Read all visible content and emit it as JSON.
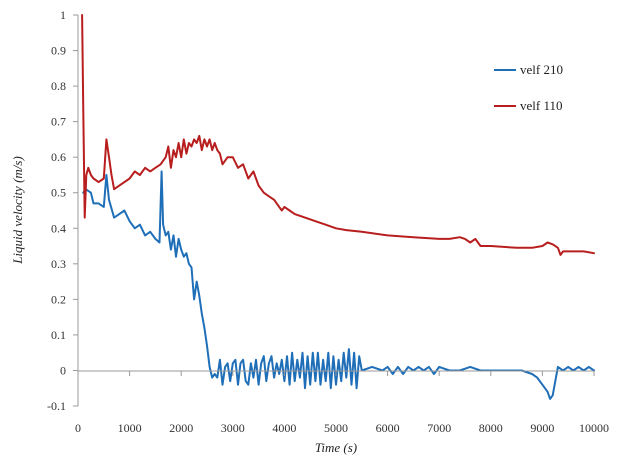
{
  "chart_data": {
    "type": "line",
    "title": "",
    "xlabel": "Time (s)",
    "ylabel": "Liquid velocity (m/s)",
    "xlim": [
      0,
      10000
    ],
    "ylim": [
      -0.1,
      1
    ],
    "x_ticks": [
      0,
      1000,
      2000,
      3000,
      4000,
      5000,
      6000,
      7000,
      8000,
      9000,
      10000
    ],
    "x_tick_labels": [
      "0",
      "1000",
      "2000",
      "3000",
      "4000",
      "5000",
      "6000",
      "7000",
      "8000",
      "9000",
      "10000"
    ],
    "y_ticks": [
      -0.1,
      0,
      0.1,
      0.2,
      0.3,
      0.4,
      0.5,
      0.6,
      0.7,
      0.8,
      0.9,
      1
    ],
    "y_tick_labels": [
      "-0.1",
      "0",
      "0.1",
      "0.2",
      "0.3",
      "0.4",
      "0.5",
      "0.6",
      "0.7",
      "0.8",
      "0.9",
      "1"
    ],
    "grid": false,
    "legend_position": "right",
    "series": [
      {
        "name": "velf 210",
        "color": "#1f6fb8",
        "x": [
          100,
          150,
          250,
          300,
          400,
          500,
          550,
          600,
          700,
          800,
          900,
          1000,
          1100,
          1200,
          1300,
          1400,
          1500,
          1580,
          1620,
          1650,
          1700,
          1750,
          1800,
          1850,
          1900,
          1950,
          2000,
          2050,
          2100,
          2150,
          2200,
          2250,
          2300,
          2350,
          2400,
          2450,
          2500,
          2550,
          2600,
          2650,
          2700,
          2750,
          2800,
          2850,
          2900,
          2950,
          3000,
          3050,
          3100,
          3150,
          3200,
          3250,
          3300,
          3350,
          3400,
          3450,
          3500,
          3550,
          3600,
          3650,
          3700,
          3750,
          3800,
          3850,
          3900,
          3950,
          4000,
          4050,
          4100,
          4150,
          4200,
          4250,
          4300,
          4350,
          4400,
          4450,
          4500,
          4550,
          4600,
          4650,
          4700,
          4750,
          4800,
          4850,
          4900,
          4950,
          5000,
          5050,
          5100,
          5150,
          5200,
          5250,
          5300,
          5350,
          5400,
          5450,
          5500,
          5700,
          5900,
          6000,
          6100,
          6200,
          6300,
          6400,
          6500,
          6600,
          6700,
          6800,
          6900,
          7000,
          7200,
          7400,
          7600,
          7800,
          8000,
          8200,
          8400,
          8600,
          8800,
          8900,
          9000,
          9100,
          9150,
          9200,
          9250,
          9300,
          9400,
          9500,
          9600,
          9700,
          9800,
          9900,
          10000
        ],
        "values": [
          0.5,
          0.51,
          0.5,
          0.47,
          0.47,
          0.46,
          0.55,
          0.48,
          0.43,
          0.44,
          0.45,
          0.42,
          0.4,
          0.41,
          0.38,
          0.39,
          0.37,
          0.36,
          0.56,
          0.41,
          0.38,
          0.39,
          0.34,
          0.38,
          0.32,
          0.37,
          0.34,
          0.32,
          0.33,
          0.3,
          0.29,
          0.2,
          0.25,
          0.21,
          0.16,
          0.12,
          0.07,
          0.01,
          -0.02,
          -0.01,
          -0.02,
          0.03,
          -0.04,
          0.01,
          0.02,
          -0.03,
          0.02,
          0.03,
          -0.04,
          0.02,
          0.03,
          -0.03,
          -0.04,
          0.02,
          -0.02,
          0.03,
          -0.04,
          0.02,
          0.04,
          -0.03,
          0.02,
          0.04,
          -0.02,
          0.02,
          -0.01,
          0.03,
          -0.03,
          0.04,
          -0.04,
          0.05,
          -0.03,
          0.03,
          -0.02,
          0.05,
          -0.05,
          0.04,
          -0.04,
          0.05,
          -0.03,
          0.05,
          -0.04,
          0.03,
          -0.03,
          0.05,
          -0.05,
          0.04,
          -0.04,
          0.03,
          -0.03,
          0.05,
          -0.02,
          0.06,
          -0.04,
          0.05,
          -0.05,
          0.04,
          0.0,
          0.01,
          0.0,
          0.01,
          -0.01,
          0.01,
          -0.01,
          0.01,
          0.0,
          0.01,
          0.0,
          0.01,
          -0.01,
          0.01,
          0.0,
          0.0,
          0.01,
          0.0,
          0.0,
          0.0,
          0.0,
          0.0,
          -0.01,
          -0.02,
          -0.04,
          -0.06,
          -0.08,
          -0.07,
          -0.03,
          0.01,
          0.0,
          0.01,
          0.0,
          0.01,
          0.0,
          0.01,
          0.0
        ]
      },
      {
        "name": "velf 110",
        "color": "#b81e1e",
        "x": [
          80,
          100,
          130,
          160,
          200,
          250,
          300,
          400,
          500,
          550,
          600,
          650,
          700,
          800,
          900,
          1000,
          1100,
          1200,
          1300,
          1400,
          1500,
          1600,
          1700,
          1750,
          1800,
          1850,
          1900,
          1950,
          2000,
          2050,
          2100,
          2150,
          2200,
          2250,
          2300,
          2350,
          2400,
          2450,
          2500,
          2550,
          2600,
          2650,
          2700,
          2750,
          2800,
          2900,
          3000,
          3100,
          3200,
          3300,
          3400,
          3500,
          3600,
          3700,
          3800,
          3900,
          3950,
          4000,
          4100,
          4200,
          4400,
          4600,
          4800,
          5000,
          5200,
          5500,
          6000,
          6500,
          7000,
          7200,
          7400,
          7500,
          7600,
          7700,
          7800,
          8000,
          8500,
          8800,
          9000,
          9100,
          9200,
          9300,
          9350,
          9400,
          9600,
          9800,
          10000
        ],
        "values": [
          1.0,
          0.75,
          0.43,
          0.55,
          0.57,
          0.55,
          0.54,
          0.53,
          0.54,
          0.65,
          0.6,
          0.55,
          0.51,
          0.52,
          0.53,
          0.54,
          0.56,
          0.55,
          0.57,
          0.56,
          0.57,
          0.58,
          0.6,
          0.63,
          0.57,
          0.62,
          0.6,
          0.64,
          0.6,
          0.65,
          0.61,
          0.64,
          0.63,
          0.65,
          0.64,
          0.66,
          0.62,
          0.65,
          0.63,
          0.65,
          0.62,
          0.64,
          0.62,
          0.61,
          0.58,
          0.6,
          0.6,
          0.57,
          0.58,
          0.54,
          0.56,
          0.52,
          0.5,
          0.49,
          0.48,
          0.46,
          0.45,
          0.46,
          0.45,
          0.44,
          0.43,
          0.42,
          0.41,
          0.4,
          0.395,
          0.39,
          0.38,
          0.375,
          0.37,
          0.37,
          0.375,
          0.37,
          0.36,
          0.37,
          0.35,
          0.35,
          0.345,
          0.345,
          0.35,
          0.36,
          0.355,
          0.345,
          0.325,
          0.335,
          0.335,
          0.335,
          0.33
        ]
      }
    ]
  }
}
